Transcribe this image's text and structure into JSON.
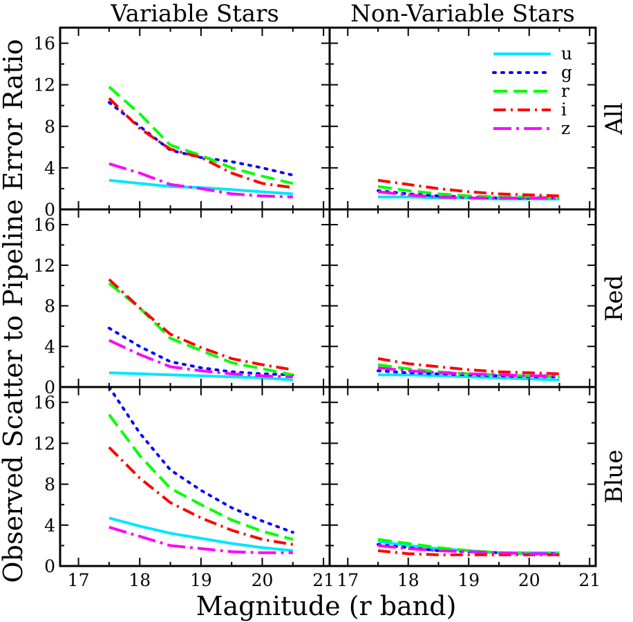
{
  "figure": {
    "y_axis_label": "Observed Scatter to Pipeline Error Ratio",
    "x_axis_label": "Magnitude (r band)"
  },
  "chart_data": {
    "type": "line",
    "layout": "3x2 grid of panels",
    "columns": [
      "Variable Stars",
      "Non-Variable Stars"
    ],
    "rows": [
      "All",
      "Red",
      "Blue"
    ],
    "xlim": [
      16.7,
      21.1
    ],
    "ylim": [
      0,
      17.5
    ],
    "xticks": [
      17,
      18,
      19,
      20,
      21
    ],
    "yticks": [
      0,
      4,
      8,
      12,
      16
    ],
    "x": [
      17.5,
      18.0,
      18.5,
      19.0,
      19.5,
      20.0,
      20.5
    ],
    "xlabel": "Magnitude (r band)",
    "ylabel": "Observed Scatter to Pipeline Error Ratio",
    "legend_position": "top-right of Non-Variable Stars / All panel",
    "series_styles": [
      {
        "name": "u",
        "color": "#00e6ff",
        "dash": "solid"
      },
      {
        "name": "g",
        "color": "#0000ff",
        "dash": "dotted"
      },
      {
        "name": "r",
        "color": "#00ff00",
        "dash": "dashed"
      },
      {
        "name": "i",
        "color": "#ff0000",
        "dash": "dash-dot"
      },
      {
        "name": "z",
        "color": "#ff00ff",
        "dash": "long-dash-dot"
      }
    ],
    "panels": [
      {
        "row": "All",
        "column": "Variable Stars",
        "series": [
          {
            "name": "u",
            "values": [
              2.8,
              2.5,
              2.2,
              2.1,
              1.9,
              1.7,
              1.5
            ]
          },
          {
            "name": "g",
            "values": [
              10.3,
              8.0,
              5.7,
              5.0,
              4.6,
              4.0,
              3.3
            ]
          },
          {
            "name": "r",
            "values": [
              11.8,
              9.2,
              6.2,
              5.2,
              4.0,
              3.2,
              2.5
            ]
          },
          {
            "name": "i",
            "values": [
              10.7,
              7.8,
              5.8,
              5.0,
              3.5,
              2.5,
              2.1
            ]
          },
          {
            "name": "z",
            "values": [
              4.4,
              3.5,
              2.4,
              2.0,
              1.5,
              1.3,
              1.2
            ]
          }
        ]
      },
      {
        "row": "All",
        "column": "Non-Variable Stars",
        "series": [
          {
            "name": "u",
            "values": [
              1.2,
              1.2,
              1.1,
              1.1,
              1.0,
              1.0,
              1.0
            ]
          },
          {
            "name": "g",
            "values": [
              1.8,
              1.5,
              1.3,
              1.2,
              1.1,
              1.1,
              1.1
            ]
          },
          {
            "name": "r",
            "values": [
              2.2,
              1.8,
              1.5,
              1.3,
              1.2,
              1.2,
              1.1
            ]
          },
          {
            "name": "i",
            "values": [
              2.8,
              2.4,
              2.0,
              1.7,
              1.5,
              1.4,
              1.3
            ]
          },
          {
            "name": "z",
            "values": [
              1.7,
              1.4,
              1.2,
              1.1,
              1.1,
              1.1,
              1.1
            ]
          }
        ]
      },
      {
        "row": "Red",
        "column": "Variable Stars",
        "series": [
          {
            "name": "u",
            "values": [
              1.4,
              1.3,
              1.2,
              1.1,
              1.0,
              0.9,
              0.7
            ]
          },
          {
            "name": "g",
            "values": [
              5.8,
              4.0,
              2.5,
              1.9,
              1.5,
              1.3,
              1.2
            ]
          },
          {
            "name": "r",
            "values": [
              10.2,
              7.8,
              4.8,
              3.6,
              2.4,
              1.8,
              1.2
            ]
          },
          {
            "name": "i",
            "values": [
              10.6,
              7.8,
              5.2,
              3.9,
              2.8,
              2.2,
              1.7
            ]
          },
          {
            "name": "z",
            "values": [
              4.6,
              3.2,
              2.0,
              1.6,
              1.3,
              1.1,
              1.0
            ]
          }
        ]
      },
      {
        "row": "Red",
        "column": "Non-Variable Stars",
        "series": [
          {
            "name": "u",
            "values": [
              1.2,
              1.2,
              1.1,
              1.0,
              0.9,
              0.8,
              0.7
            ]
          },
          {
            "name": "g",
            "values": [
              1.6,
              1.4,
              1.3,
              1.2,
              1.1,
              1.0,
              1.0
            ]
          },
          {
            "name": "r",
            "values": [
              2.2,
              1.8,
              1.5,
              1.3,
              1.2,
              1.1,
              1.0
            ]
          },
          {
            "name": "i",
            "values": [
              2.8,
              2.3,
              2.0,
              1.7,
              1.5,
              1.4,
              1.3
            ]
          },
          {
            "name": "z",
            "values": [
              1.9,
              1.6,
              1.4,
              1.3,
              1.2,
              1.1,
              1.1
            ]
          }
        ]
      },
      {
        "row": "Blue",
        "column": "Variable Stars",
        "series": [
          {
            "name": "u",
            "values": [
              4.7,
              3.9,
              3.2,
              2.7,
              2.2,
              1.8,
              1.5
            ]
          },
          {
            "name": "g",
            "values": [
              17.5,
              13.0,
              9.4,
              7.4,
              5.7,
              4.4,
              3.3
            ]
          },
          {
            "name": "r",
            "values": [
              14.8,
              10.8,
              7.6,
              6.0,
              4.5,
              3.4,
              2.6
            ]
          },
          {
            "name": "i",
            "values": [
              11.6,
              8.6,
              6.2,
              4.7,
              3.5,
              2.6,
              2.1
            ]
          },
          {
            "name": "z",
            "values": [
              3.8,
              2.9,
              2.0,
              1.7,
              1.4,
              1.3,
              1.3
            ]
          }
        ]
      },
      {
        "row": "Blue",
        "column": "Non-Variable Stars",
        "series": [
          {
            "name": "u",
            "values": [
              2.4,
              2.0,
              1.7,
              1.5,
              1.3,
              1.3,
              1.3
            ]
          },
          {
            "name": "g",
            "values": [
              2.1,
              1.8,
              1.5,
              1.4,
              1.3,
              1.2,
              1.2
            ]
          },
          {
            "name": "r",
            "values": [
              2.6,
              2.2,
              1.8,
              1.5,
              1.3,
              1.2,
              1.2
            ]
          },
          {
            "name": "i",
            "values": [
              1.5,
              1.2,
              1.1,
              1.1,
              1.1,
              1.1,
              1.1
            ]
          },
          {
            "name": "z",
            "values": [
              2.0,
              1.7,
              1.5,
              1.4,
              1.3,
              1.2,
              1.2
            ]
          }
        ]
      }
    ]
  }
}
